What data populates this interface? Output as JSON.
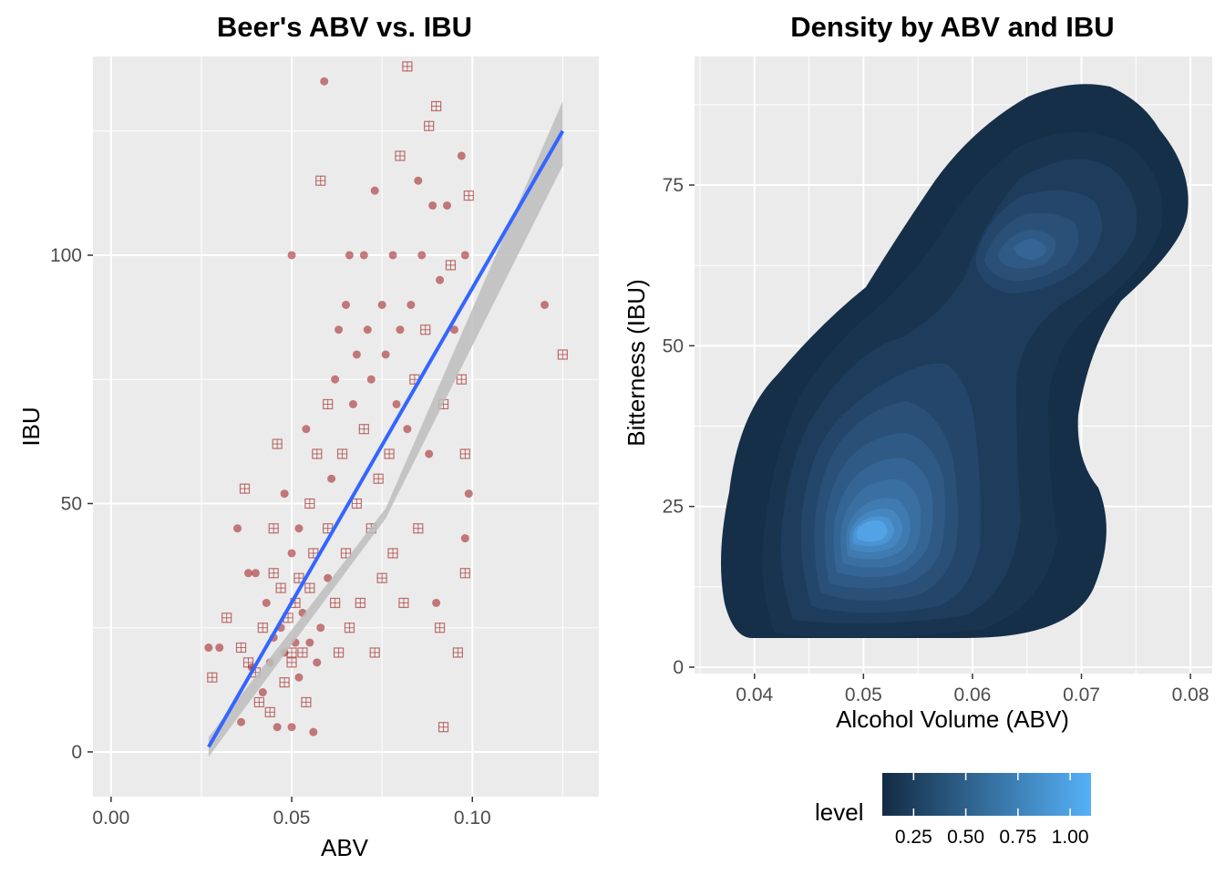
{
  "colors": {
    "panel": "#ebebeb",
    "grid_major": "#ffffff",
    "point": "#a52a2a",
    "fit_line": "#3366ff",
    "ribbon": "#bdbdbd",
    "density_low": "#132b43",
    "density_high": "#56b1f7"
  },
  "chart_data": [
    {
      "type": "scatter",
      "title": "Beer's ABV vs. IBU",
      "xlabel": "ABV",
      "ylabel": "IBU",
      "xlim": [
        -0.005,
        0.135
      ],
      "ylim": [
        -9,
        140
      ],
      "xticks": [
        0.0,
        0.05,
        0.1
      ],
      "xtick_labels": [
        "0.00",
        "0.05",
        "0.10"
      ],
      "yticks": [
        0,
        50,
        100
      ],
      "ytick_labels": [
        "0",
        "50",
        "100"
      ],
      "grid": true,
      "points": [
        [
          0.027,
          21
        ],
        [
          0.028,
          15
        ],
        [
          0.03,
          21
        ],
        [
          0.032,
          27
        ],
        [
          0.035,
          45
        ],
        [
          0.036,
          21
        ],
        [
          0.036,
          6
        ],
        [
          0.037,
          53
        ],
        [
          0.038,
          36
        ],
        [
          0.038,
          18
        ],
        [
          0.039,
          17
        ],
        [
          0.04,
          16
        ],
        [
          0.04,
          36
        ],
        [
          0.041,
          10
        ],
        [
          0.042,
          12
        ],
        [
          0.042,
          25
        ],
        [
          0.043,
          30
        ],
        [
          0.044,
          8
        ],
        [
          0.044,
          18
        ],
        [
          0.045,
          45
        ],
        [
          0.045,
          23
        ],
        [
          0.045,
          36
        ],
        [
          0.046,
          5
        ],
        [
          0.046,
          62
        ],
        [
          0.047,
          25
        ],
        [
          0.047,
          33
        ],
        [
          0.048,
          20
        ],
        [
          0.048,
          14
        ],
        [
          0.048,
          52
        ],
        [
          0.049,
          27
        ],
        [
          0.05,
          100
        ],
        [
          0.05,
          20
        ],
        [
          0.05,
          40
        ],
        [
          0.05,
          18
        ],
        [
          0.051,
          22
        ],
        [
          0.051,
          30
        ],
        [
          0.052,
          15
        ],
        [
          0.052,
          35
        ],
        [
          0.052,
          45
        ],
        [
          0.053,
          20
        ],
        [
          0.053,
          28
        ],
        [
          0.054,
          10
        ],
        [
          0.054,
          65
        ],
        [
          0.055,
          33
        ],
        [
          0.055,
          22
        ],
        [
          0.055,
          50
        ],
        [
          0.056,
          4
        ],
        [
          0.056,
          40
        ],
        [
          0.057,
          18
        ],
        [
          0.057,
          60
        ],
        [
          0.058,
          25
        ],
        [
          0.058,
          115
        ],
        [
          0.059,
          135
        ],
        [
          0.06,
          70
        ],
        [
          0.06,
          35
        ],
        [
          0.06,
          45
        ],
        [
          0.061,
          55
        ],
        [
          0.062,
          30
        ],
        [
          0.062,
          75
        ],
        [
          0.063,
          20
        ],
        [
          0.063,
          85
        ],
        [
          0.064,
          60
        ],
        [
          0.065,
          90
        ],
        [
          0.065,
          40
        ],
        [
          0.066,
          100
        ],
        [
          0.066,
          25
        ],
        [
          0.067,
          70
        ],
        [
          0.068,
          50
        ],
        [
          0.068,
          80
        ],
        [
          0.069,
          30
        ],
        [
          0.07,
          100
        ],
        [
          0.07,
          65
        ],
        [
          0.071,
          85
        ],
        [
          0.072,
          45
        ],
        [
          0.072,
          75
        ],
        [
          0.073,
          20
        ],
        [
          0.073,
          113
        ],
        [
          0.074,
          55
        ],
        [
          0.075,
          90
        ],
        [
          0.075,
          35
        ],
        [
          0.076,
          80
        ],
        [
          0.077,
          60
        ],
        [
          0.078,
          100
        ],
        [
          0.078,
          40
        ],
        [
          0.079,
          70
        ],
        [
          0.08,
          120
        ],
        [
          0.08,
          85
        ],
        [
          0.081,
          30
        ],
        [
          0.082,
          65
        ],
        [
          0.082,
          138
        ],
        [
          0.083,
          90
        ],
        [
          0.084,
          75
        ],
        [
          0.085,
          115
        ],
        [
          0.085,
          45
        ],
        [
          0.086,
          100
        ],
        [
          0.087,
          85
        ],
        [
          0.088,
          60
        ],
        [
          0.088,
          126
        ],
        [
          0.089,
          110
        ],
        [
          0.09,
          130
        ],
        [
          0.09,
          30
        ],
        [
          0.091,
          25
        ],
        [
          0.091,
          95
        ],
        [
          0.092,
          70
        ],
        [
          0.093,
          110
        ],
        [
          0.094,
          98
        ],
        [
          0.095,
          85
        ],
        [
          0.096,
          20
        ],
        [
          0.097,
          120
        ],
        [
          0.097,
          75
        ],
        [
          0.098,
          100
        ],
        [
          0.098,
          60
        ],
        [
          0.098,
          43
        ],
        [
          0.098,
          36
        ],
        [
          0.099,
          52
        ],
        [
          0.099,
          112
        ],
        [
          0.12,
          90
        ],
        [
          0.125,
          80
        ],
        [
          0.05,
          5
        ],
        [
          0.092,
          5
        ]
      ],
      "fit": {
        "x0": 0.027,
        "y0": 1,
        "x1": 0.125,
        "y1": 125
      },
      "ribbon": {
        "at_x0": [
          -1,
          3
        ],
        "at_x1": [
          118,
          131
        ],
        "at_mid": [
          47,
          49
        ]
      }
    },
    {
      "type": "heatmap",
      "title": "Density by ABV and IBU",
      "xlabel": "Alcohol Volume (ABV)",
      "ylabel": "Bitterness (IBU)",
      "xlim": [
        0.0345,
        0.082
      ],
      "ylim": [
        -1,
        95
      ],
      "xticks": [
        0.04,
        0.05,
        0.06,
        0.07,
        0.08
      ],
      "xtick_labels": [
        "0.04",
        "0.05",
        "0.06",
        "0.07",
        "0.08"
      ],
      "yticks": [
        0,
        25,
        50,
        75
      ],
      "ytick_labels": [
        "0",
        "25",
        "50",
        "75"
      ],
      "grid": true,
      "density_peaks": [
        {
          "abv": 0.051,
          "ibu": 22,
          "peak_level": 1.1
        },
        {
          "abv": 0.066,
          "ibu": 67,
          "peak_level": 0.4
        }
      ],
      "legend": {
        "title": "level",
        "placement": "bottom",
        "range": [
          0.1,
          1.1
        ],
        "ticks": [
          0.25,
          0.5,
          0.75,
          1.0
        ],
        "tick_labels": [
          "0.25",
          "0.50",
          "0.75",
          "1.00"
        ]
      }
    }
  ]
}
